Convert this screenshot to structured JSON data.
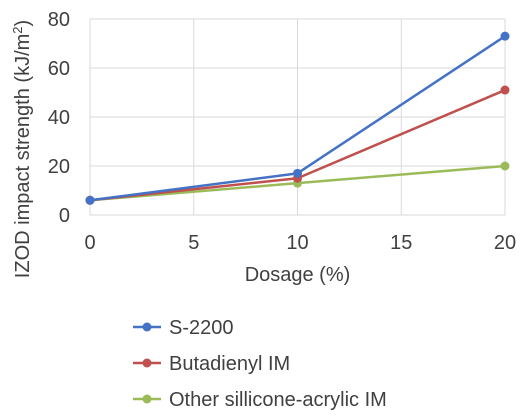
{
  "chart_data": {
    "type": "line",
    "title": "",
    "xlabel": "Dosage (%)",
    "ylabel_main": "IZOD impact strength (kJ/m",
    "ylabel_sup": "2",
    "ylabel_end": ")",
    "xlim": [
      0,
      20
    ],
    "ylim": [
      0,
      80
    ],
    "xticks": [
      "0",
      "5",
      "10",
      "15",
      "20"
    ],
    "yticks": [
      "0",
      "20",
      "40",
      "60",
      "80"
    ],
    "x": [
      0,
      10,
      20
    ],
    "grid": true,
    "legend_position": "bottom",
    "series": [
      {
        "name": "S-2200",
        "color": "#4472c4",
        "values": [
          6,
          17,
          73
        ]
      },
      {
        "name": "Butadienyl IM",
        "color": "#c0504d",
        "values": [
          6,
          15,
          51
        ]
      },
      {
        "name": "Other sillicone-acrylic IM",
        "color": "#9bbb59",
        "values": [
          6,
          13,
          20
        ]
      }
    ]
  }
}
